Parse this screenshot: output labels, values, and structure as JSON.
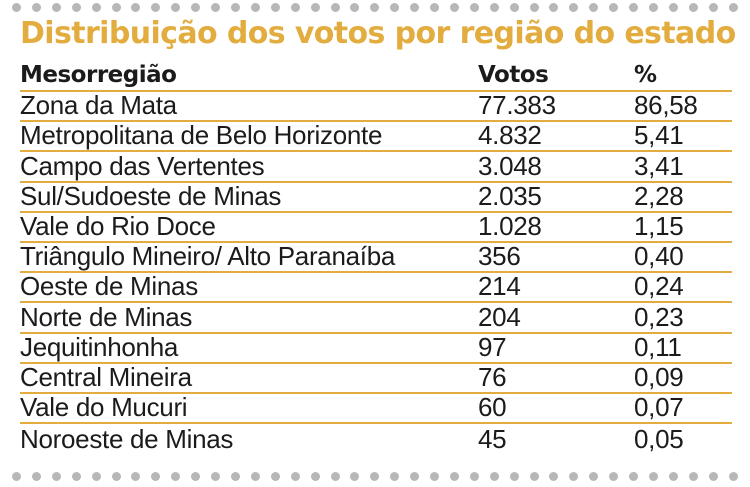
{
  "title": "Distribuição dos votos por região do estado",
  "colors": {
    "accent": "#e3ac3f",
    "dots": "#b7b7b7",
    "text": "#1b1b1b"
  },
  "table": {
    "headers": {
      "name": "Mesorregião",
      "votes": "Votos",
      "pct": "%"
    },
    "rows": [
      {
        "name": "Zona da Mata",
        "votes": "77.383",
        "pct": "86,58"
      },
      {
        "name": "Metropolitana de Belo Horizonte",
        "votes": "4.832",
        "pct": "5,41"
      },
      {
        "name": "Campo das Vertentes",
        "votes": "3.048",
        "pct": "3,41"
      },
      {
        "name": "Sul/Sudoeste de Minas",
        "votes": "2.035",
        "pct": "2,28"
      },
      {
        "name": "Vale do Rio Doce",
        "votes": "1.028",
        "pct": "1,15"
      },
      {
        "name": "Triângulo Mineiro/ Alto Paranaíba",
        "votes": "356",
        "pct": "0,40"
      },
      {
        "name": "Oeste de Minas",
        "votes": "214",
        "pct": "0,24"
      },
      {
        "name": "Norte de Minas",
        "votes": "204",
        "pct": "0,23"
      },
      {
        "name": "Jequitinhonha",
        "votes": "97",
        "pct": "0,11"
      },
      {
        "name": "Central Mineira",
        "votes": "76",
        "pct": "0,09"
      },
      {
        "name": "Vale do Mucuri",
        "votes": "60",
        "pct": "0,07"
      },
      {
        "name": "Noroeste de Minas",
        "votes": "45",
        "pct": "0,05"
      }
    ]
  }
}
